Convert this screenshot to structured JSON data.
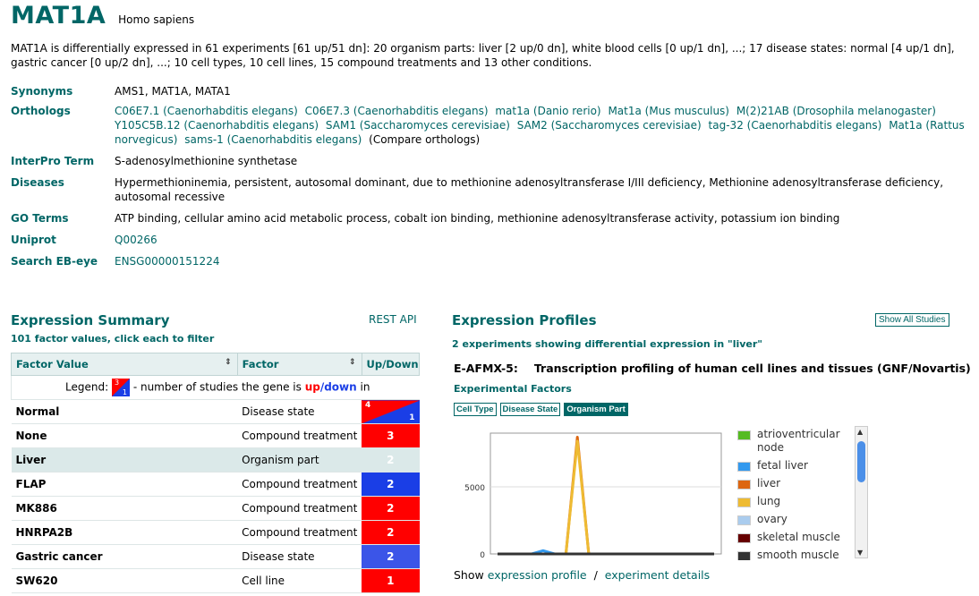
{
  "gene": {
    "name": "MAT1A",
    "species": "Homo sapiens"
  },
  "summary": "MAT1A is differentially expressed in 61 experiments [61 up/51 dn]: 20 organism parts: liver [2 up/0 dn], white blood cells [0 up/1 dn], ...; 17 disease states: normal [4 up/1 dn], gastric cancer [0 up/2 dn], ...; 10 cell types, 10 cell lines, 15 compound treatments and 13 other conditions.",
  "info": {
    "synonyms_label": "Synonyms",
    "synonyms": "AMS1, MAT1A, MATA1",
    "orthologs_label": "Orthologs",
    "orthologs": [
      "C06E7.1 (Caenorhabditis elegans)",
      "C06E7.3 (Caenorhabditis elegans)",
      "mat1a (Danio rerio)",
      "Mat1a (Mus musculus)",
      "M(2)21AB (Drosophila melanogaster)",
      "Y105C5B.12 (Caenorhabditis elegans)",
      "SAM1 (Saccharomyces cerevisiae)",
      "SAM2 (Saccharomyces cerevisiae)",
      "tag-32 (Caenorhabditis elegans)",
      "Mat1a (Rattus norvegicus)",
      "sams-1 (Caenorhabditis elegans)"
    ],
    "compare_orthologs": "(Compare orthologs)",
    "interpro_label": "InterPro Term",
    "interpro": "S-adenosylmethionine synthetase",
    "diseases_label": "Diseases",
    "diseases": "Hypermethioninemia, persistent, autosomal dominant, due to methionine adenosyltransferase I/III deficiency, Methionine adenosyltransferase deficiency, autosomal recessive",
    "go_label": "GO Terms",
    "go": "ATP binding, cellular amino acid metabolic process, cobalt ion binding, methionine adenosyltransferase activity, potassium ion binding",
    "uniprot_label": "Uniprot",
    "uniprot": "Q00266",
    "ebeye_label": "Search EB-eye",
    "ebeye": "ENSG00000151224"
  },
  "expression_summary": {
    "title": "Expression Summary",
    "rest_api": "REST API",
    "subtitle": "101 factor values, click each to filter",
    "headers": {
      "factor_value": "Factor Value",
      "factor": "Factor",
      "updown": "Up/Down",
      "sort_icon": "⇕"
    },
    "legend": {
      "prefix": "Legend:",
      "middle": "- number of studies the gene is",
      "up": "up",
      "slash": "/",
      "down": "down",
      "suffix": "in",
      "up_num": "3",
      "down_num": "1"
    },
    "rows": [
      {
        "value": "Normal",
        "factor": "Disease state",
        "up": "4",
        "down": "1",
        "kind": "split"
      },
      {
        "value": "None",
        "factor": "Compound treatment",
        "count": "3",
        "kind": "red"
      },
      {
        "value": "Liver",
        "factor": "Organism part",
        "count": "2",
        "kind": "red",
        "selected": true
      },
      {
        "value": "FLAP",
        "factor": "Compound treatment",
        "count": "2",
        "kind": "blue"
      },
      {
        "value": "MK886",
        "factor": "Compound treatment",
        "count": "2",
        "kind": "red"
      },
      {
        "value": "HNRPA2B",
        "factor": "Compound treatment",
        "count": "2",
        "kind": "red"
      },
      {
        "value": "Gastric cancer",
        "factor": "Disease state",
        "count": "2",
        "kind": "blue2"
      },
      {
        "value": "SW620",
        "factor": "Cell line",
        "count": "1",
        "kind": "red"
      }
    ]
  },
  "expression_profiles": {
    "title": "Expression Profiles",
    "show_all": "Show All Studies",
    "subtitle": "2 experiments showing differential expression in \"liver\"",
    "accession": "E-AFMX-5:",
    "experiment_title": "Transcription profiling of human cell lines and tissues (GNF/Novartis)",
    "factors_title": "Experimental Factors",
    "factor_buttons": [
      {
        "label": "Cell Type",
        "active": false
      },
      {
        "label": "Disease State",
        "active": false
      },
      {
        "label": "Organism Part",
        "active": true
      }
    ],
    "show_prefix": "Show",
    "show_profile": "expression profile",
    "separator": "/",
    "experiment_details": "experiment details"
  },
  "chart_data": {
    "type": "line",
    "ylim": [
      0,
      9000
    ],
    "y_ticks": [
      "5000",
      "0"
    ],
    "y_tick_values": [
      5000,
      0
    ],
    "grid": true,
    "legend_placement": "right",
    "series": [
      {
        "name": "atrioventricular node",
        "color": "#55bb22",
        "values": [
          0,
          0,
          0,
          0,
          0,
          0,
          0,
          0,
          0,
          0,
          0,
          0,
          0,
          0,
          0,
          0,
          0,
          0,
          0,
          0
        ]
      },
      {
        "name": "fetal liver",
        "color": "#3399ee",
        "values": [
          0,
          0,
          0,
          0,
          250,
          0,
          0,
          0,
          0,
          0,
          0,
          0,
          0,
          0,
          0,
          0,
          0,
          0,
          0,
          0
        ]
      },
      {
        "name": "liver",
        "color": "#dd6611",
        "values": [
          0,
          0,
          0,
          0,
          0,
          0,
          0,
          8700,
          0,
          0,
          0,
          0,
          0,
          0,
          0,
          0,
          0,
          0,
          0,
          0
        ]
      },
      {
        "name": "lung",
        "color": "#eebb33",
        "values": [
          0,
          0,
          0,
          0,
          0,
          0,
          0,
          8400,
          0,
          0,
          0,
          0,
          0,
          0,
          0,
          0,
          0,
          0,
          0,
          0
        ]
      },
      {
        "name": "ovary",
        "color": "#aaccee",
        "values": [
          0,
          0,
          0,
          0,
          0,
          0,
          0,
          0,
          0,
          0,
          0,
          0,
          0,
          0,
          0,
          0,
          0,
          0,
          0,
          0
        ]
      },
      {
        "name": "skeletal muscle",
        "color": "#660000",
        "values": [
          0,
          0,
          0,
          0,
          0,
          0,
          0,
          0,
          0,
          0,
          0,
          0,
          0,
          0,
          0,
          0,
          0,
          0,
          0,
          0
        ]
      },
      {
        "name": "smooth muscle",
        "color": "#333333",
        "values": [
          0,
          0,
          0,
          0,
          0,
          0,
          0,
          0,
          0,
          0,
          0,
          0,
          0,
          0,
          0,
          0,
          0,
          0,
          0,
          0
        ]
      }
    ]
  }
}
